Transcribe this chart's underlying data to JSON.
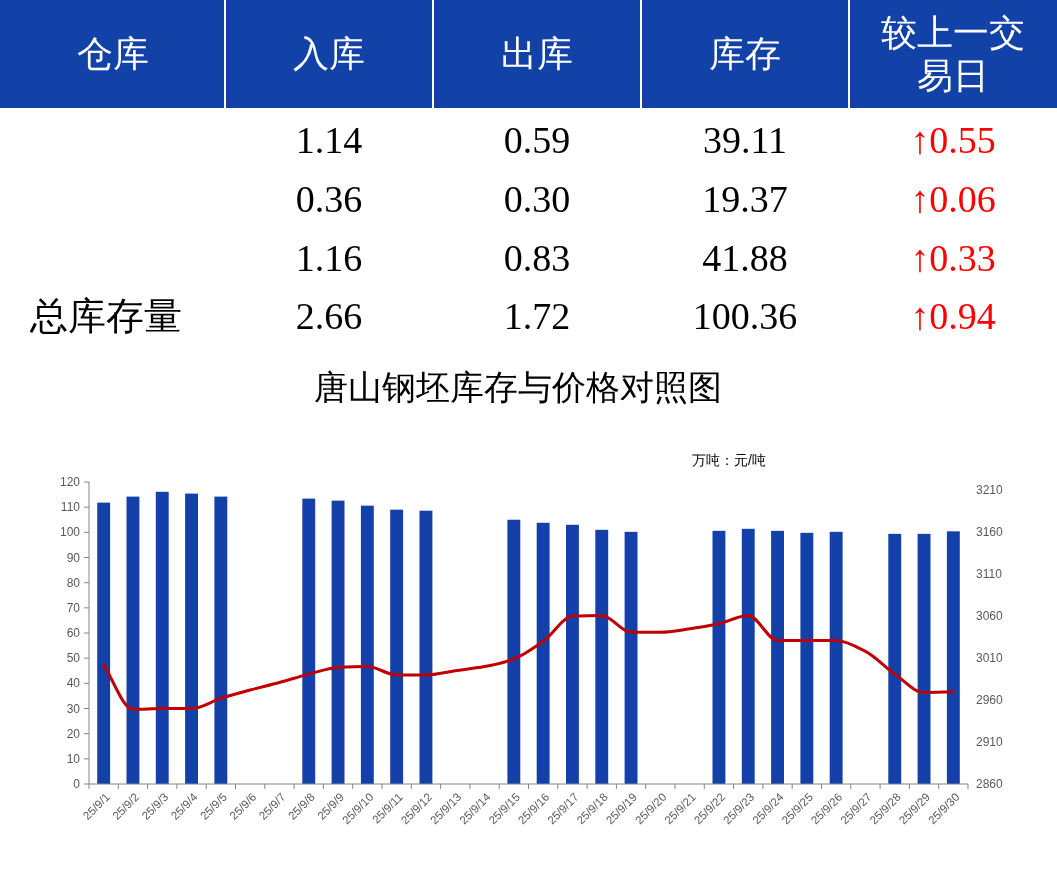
{
  "chart_data": [
    {
      "type": "other",
      "ylabel": "仓库",
      "categories": [
        "入库",
        "出库",
        "库存",
        "较上一交易日"
      ],
      "y_categories": [
        null,
        null,
        null,
        "总库存量"
      ],
      "cell_labels": [
        [
          "1.14",
          "0.59",
          "39.11",
          "↑0.55"
        ],
        [
          "0.36",
          "0.30",
          "19.37",
          "↑0.06"
        ],
        [
          "1.16",
          "0.83",
          "41.88",
          "↑0.33"
        ],
        [
          "2.66",
          "1.72",
          "100.36",
          "↑0.94"
        ]
      ]
    },
    {
      "type": "bar",
      "title": "唐山钢坯库存与价格对照图",
      "annotations": [
        "万吨：元/吨"
      ],
      "categories": [
        "25/9/1",
        "25/9/2",
        "25/9/3",
        "25/9/4",
        "25/9/5",
        "25/9/6",
        "25/9/7",
        "25/9/8",
        "25/9/9",
        "25/9/10",
        "25/9/11",
        "25/9/12",
        "25/9/13",
        "25/9/14",
        "25/9/15",
        "25/9/16",
        "25/9/17",
        "25/9/18",
        "25/9/19",
        "25/9/20",
        "25/9/21",
        "25/9/22",
        "25/9/23",
        "25/9/24",
        "25/9/25",
        "25/9/26",
        "25/9/27",
        "25/9/28",
        "25/9/29",
        "25/9/30"
      ],
      "series": [
        {
          "type": "bar",
          "color": "#1341a9",
          "values": [
            111.8,
            114.2,
            116.1,
            115.4,
            114.2,
            null,
            null,
            113.4,
            112.6,
            110.6,
            109.0,
            108.6,
            null,
            null,
            105.0,
            103.8,
            103.0,
            101.0,
            100.2,
            null,
            null,
            100.6,
            101.4,
            100.6,
            99.8,
            100.2,
            null,
            99.4,
            99.4,
            100.4
          ]
        },
        {
          "type": "line",
          "axis": "y2",
          "color": "#c00000",
          "values": [
            3002,
            2949,
            2950,
            2950,
            2962,
            2972,
            2981,
            2991,
            2999,
            3000,
            2990,
            2990,
            2995,
            3000,
            3009,
            3030,
            3060,
            3061,
            3041,
            3041,
            3045,
            3051,
            3061,
            3031,
            3031,
            3031,
            3018,
            2991,
            2969,
            2970
          ]
        }
      ],
      "ylim": [
        0,
        120
      ],
      "yticks": [
        0,
        10,
        20,
        30,
        40,
        50,
        60,
        70,
        80,
        90,
        100,
        110,
        120
      ],
      "y2lim": [
        2860,
        3220
      ],
      "y2ticks": [
        2860,
        2910,
        2960,
        3010,
        3060,
        3110,
        3160,
        3210
      ]
    }
  ]
}
